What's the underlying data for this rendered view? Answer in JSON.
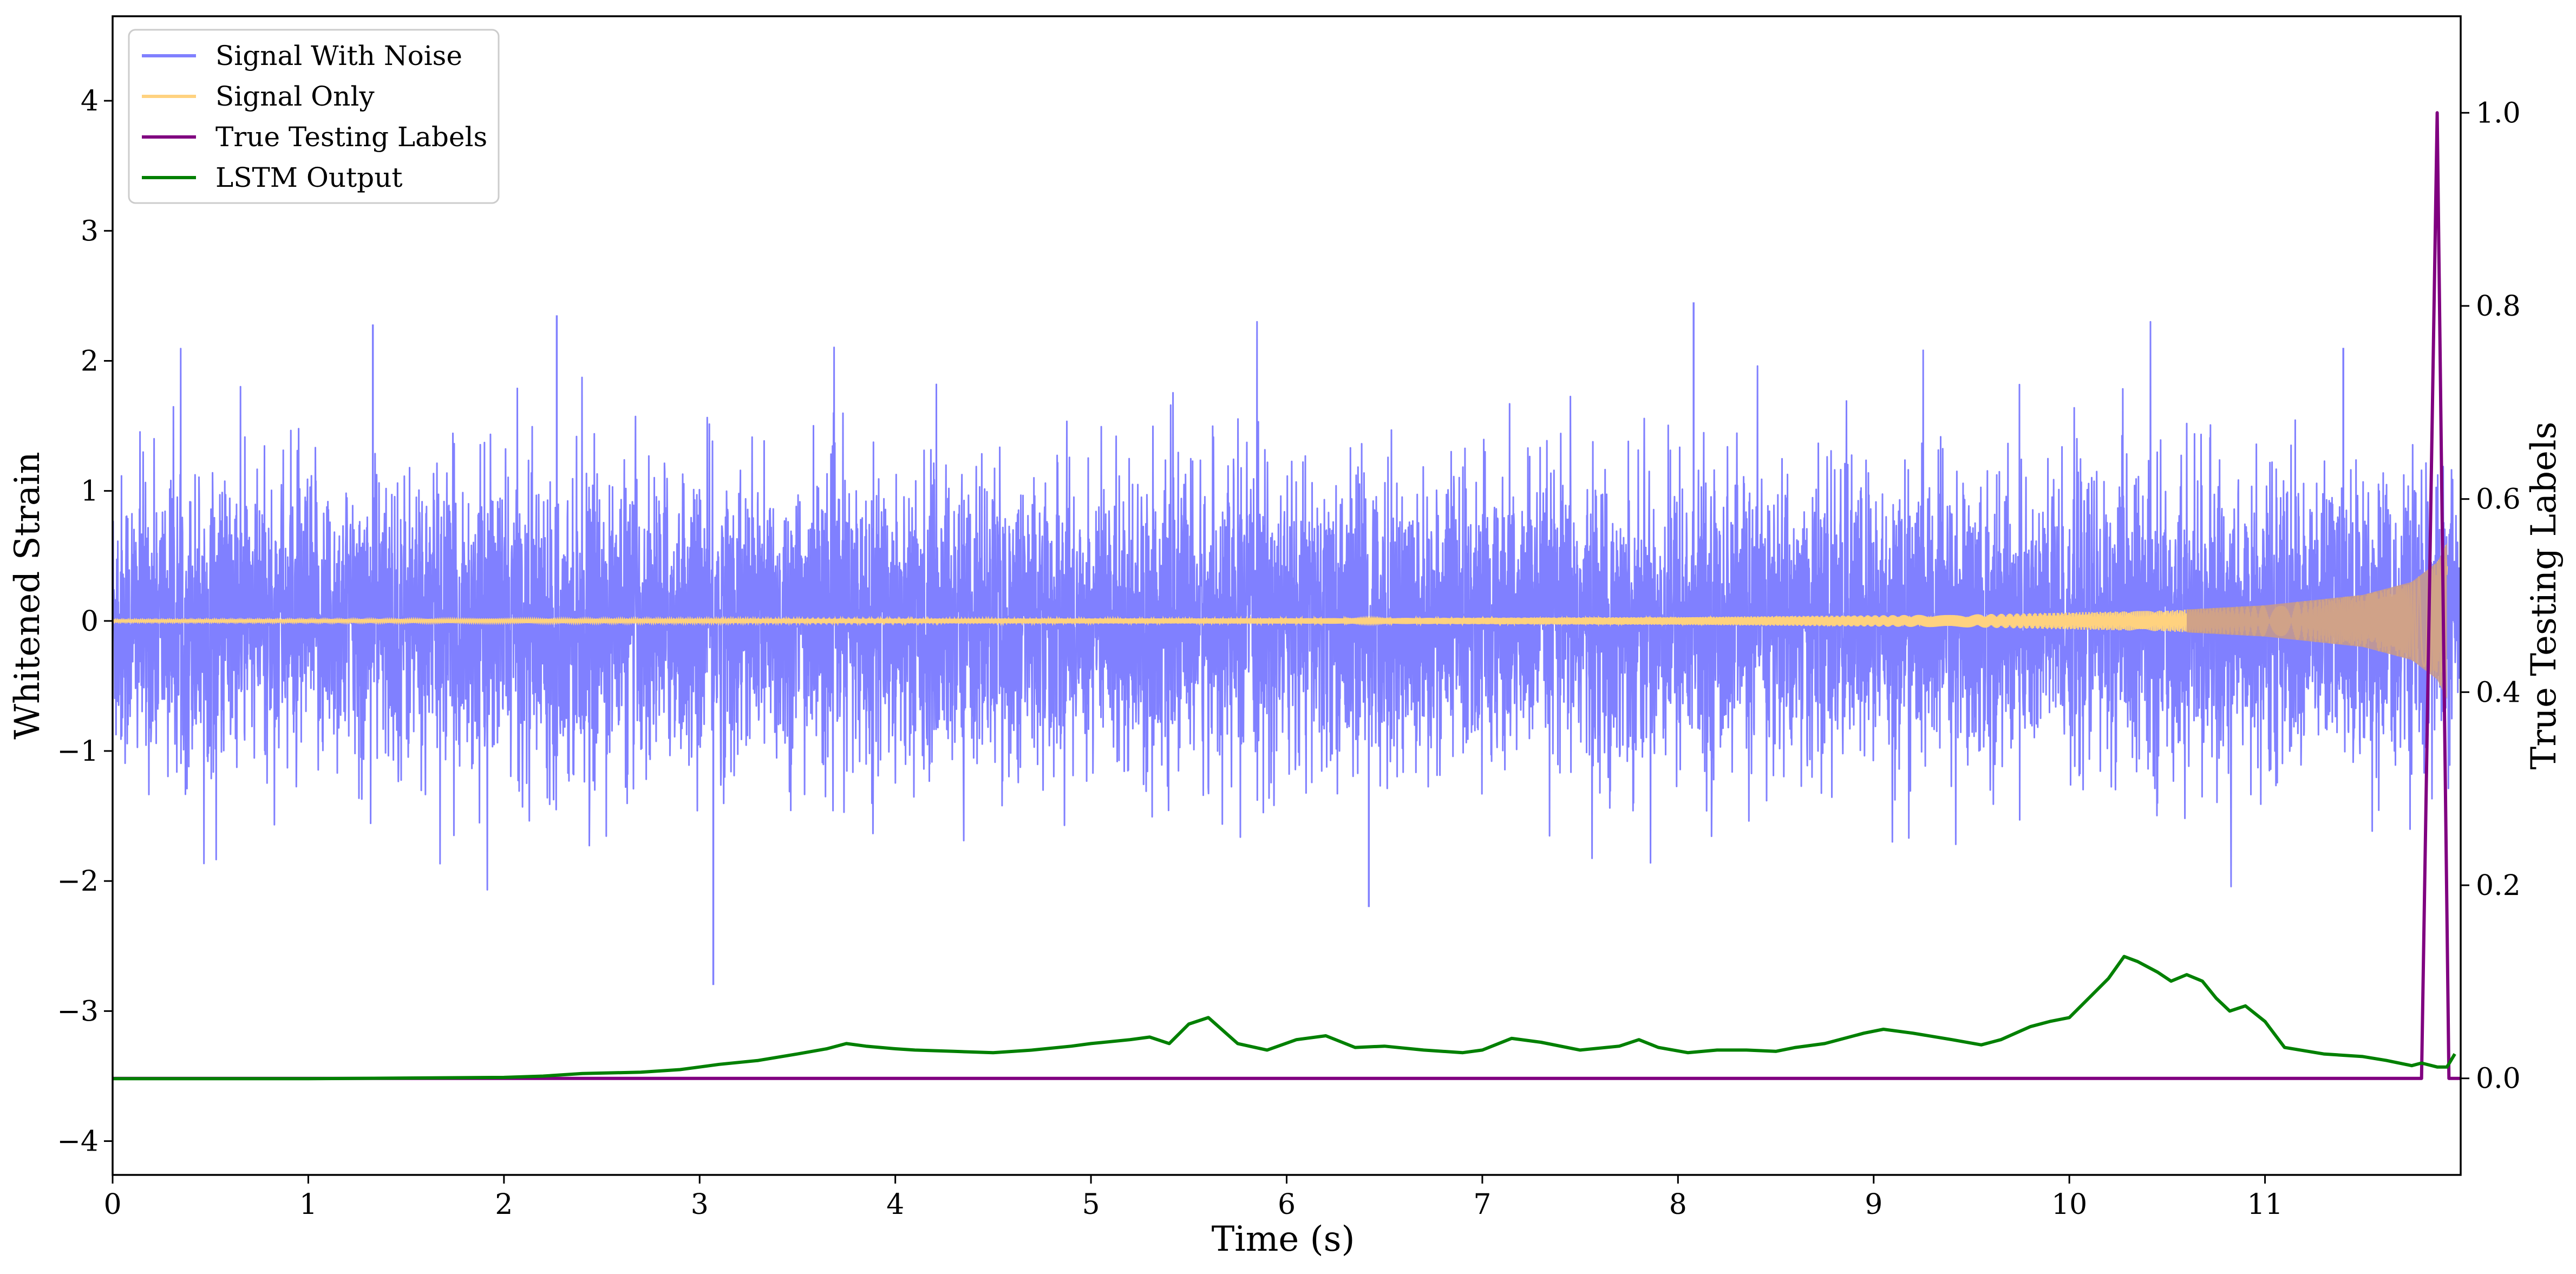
{
  "chart_data": {
    "type": "line",
    "title": "",
    "xlabel": "Time (s)",
    "ylabel": "Whitened Strain",
    "y2label": "True Testing Labels",
    "xlim": [
      0,
      12.0
    ],
    "ylim": [
      -4.26,
      4.65
    ],
    "y2lim": [
      -0.1,
      1.1
    ],
    "x_ticks": [
      0,
      1,
      2,
      3,
      4,
      5,
      6,
      7,
      8,
      9,
      10,
      11
    ],
    "x_tick_labels": [
      "0",
      "1",
      "2",
      "3",
      "4",
      "5",
      "6",
      "7",
      "8",
      "9",
      "10",
      "11"
    ],
    "y_ticks": [
      -4,
      -3,
      -2,
      -1,
      0,
      1,
      2,
      3,
      4
    ],
    "y_tick_labels": [
      "−4",
      "−3",
      "−2",
      "−1",
      "0",
      "1",
      "2",
      "3",
      "4"
    ],
    "y2_ticks": [
      0.0,
      0.2,
      0.4,
      0.6,
      0.8,
      1.0
    ],
    "y2_tick_labels": [
      "0.0",
      "0.2",
      "0.4",
      "0.6",
      "0.8",
      "1.0"
    ],
    "grid": false,
    "legend": {
      "placement": "upper-left",
      "entries": [
        {
          "label": "Signal With Noise",
          "color": "#8080ff"
        },
        {
          "label": "Signal Only",
          "color": "#ffd27f"
        },
        {
          "label": "True Testing Labels",
          "color": "#800080"
        },
        {
          "label": "LSTM Output",
          "color": "#008000"
        }
      ]
    },
    "series": [
      {
        "name": "Signal With Noise",
        "axis": "left",
        "color": "#8080ff",
        "description_stats": {
          "center": 0.0,
          "typical_range": [
            -1.5,
            1.5
          ],
          "max_spike": 2.45,
          "min_spike": -2.8,
          "x_of_min_spike": 3.07,
          "x_of_max_spike": 8.08
        }
      },
      {
        "name": "Signal Only",
        "axis": "left",
        "color": "#ffd27f",
        "envelope_points": [
          [
            0.0,
            0.01
          ],
          [
            6.0,
            0.02
          ],
          [
            8.0,
            0.03
          ],
          [
            9.5,
            0.05
          ],
          [
            10.5,
            0.08
          ],
          [
            11.0,
            0.12
          ],
          [
            11.5,
            0.2
          ],
          [
            11.75,
            0.3
          ],
          [
            11.88,
            0.45
          ],
          [
            11.93,
            0.6
          ]
        ]
      },
      {
        "name": "True Testing Labels",
        "axis": "right",
        "color": "#800080",
        "x": [
          0.0,
          11.8,
          11.88,
          11.94,
          12.0
        ],
        "y": [
          0.0,
          0.0,
          1.0,
          0.0,
          0.0
        ]
      },
      {
        "name": "LSTM Output",
        "axis": "left",
        "color": "#008000",
        "x": [
          0.0,
          1.0,
          2.0,
          2.2,
          2.4,
          2.7,
          2.9,
          3.0,
          3.1,
          3.3,
          3.5,
          3.65,
          3.75,
          3.85,
          4.0,
          4.1,
          4.3,
          4.5,
          4.7,
          4.9,
          5.0,
          5.2,
          5.3,
          5.4,
          5.5,
          5.6,
          5.75,
          5.9,
          6.05,
          6.2,
          6.35,
          6.5,
          6.7,
          6.9,
          7.0,
          7.15,
          7.3,
          7.5,
          7.7,
          7.8,
          7.9,
          8.05,
          8.2,
          8.35,
          8.5,
          8.6,
          8.75,
          8.95,
          9.05,
          9.2,
          9.4,
          9.55,
          9.65,
          9.8,
          9.9,
          10.0,
          10.1,
          10.2,
          10.28,
          10.35,
          10.45,
          10.52,
          10.6,
          10.68,
          10.75,
          10.82,
          10.9,
          11.0,
          11.1,
          11.3,
          11.5,
          11.62,
          11.75,
          11.8,
          11.88,
          11.93,
          11.97
        ],
        "y": [
          -3.52,
          -3.52,
          -3.51,
          -3.5,
          -3.48,
          -3.47,
          -3.45,
          -3.43,
          -3.41,
          -3.38,
          -3.33,
          -3.29,
          -3.25,
          -3.27,
          -3.29,
          -3.3,
          -3.31,
          -3.32,
          -3.3,
          -3.27,
          -3.25,
          -3.22,
          -3.2,
          -3.25,
          -3.1,
          -3.05,
          -3.25,
          -3.3,
          -3.22,
          -3.19,
          -3.28,
          -3.27,
          -3.3,
          -3.32,
          -3.3,
          -3.21,
          -3.24,
          -3.3,
          -3.27,
          -3.22,
          -3.28,
          -3.32,
          -3.3,
          -3.3,
          -3.31,
          -3.28,
          -3.25,
          -3.17,
          -3.14,
          -3.17,
          -3.22,
          -3.26,
          -3.22,
          -3.12,
          -3.08,
          -3.05,
          -2.9,
          -2.75,
          -2.58,
          -2.62,
          -2.7,
          -2.77,
          -2.72,
          -2.77,
          -2.9,
          -3.0,
          -2.96,
          -3.08,
          -3.28,
          -3.33,
          -3.35,
          -3.38,
          -3.42,
          -3.4,
          -3.43,
          -3.43,
          -3.33
        ]
      }
    ]
  }
}
